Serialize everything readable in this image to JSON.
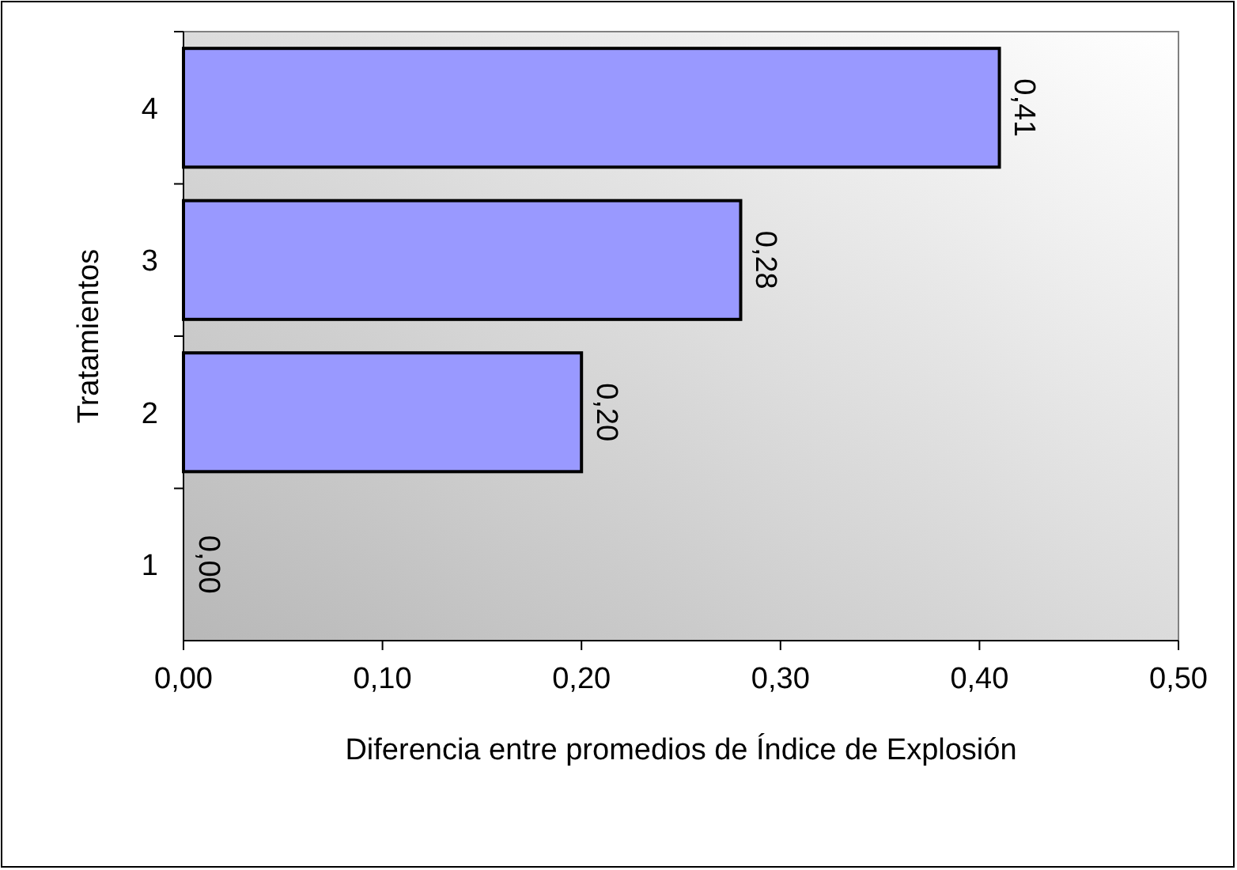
{
  "chart_data": {
    "type": "bar",
    "orientation": "horizontal",
    "xlabel": "Diferencia entre promedios de Índice de  Explosión",
    "ylabel": "Tratamientos",
    "categories": [
      "4",
      "3",
      "2",
      "1"
    ],
    "values": [
      0.41,
      0.28,
      0.2,
      0.0
    ],
    "value_labels": [
      "0,41",
      "0,28",
      "0,20",
      "0,00"
    ],
    "color": "#9999ff",
    "xlim": [
      0,
      0.5
    ],
    "xticks": [
      {
        "value": 0,
        "label": "0,00"
      },
      {
        "value": 0.1,
        "label": "0,10"
      },
      {
        "value": 0.2,
        "label": "0,20"
      },
      {
        "value": 0.3,
        "label": "0,30"
      },
      {
        "value": 0.4,
        "label": "0,40"
      },
      {
        "value": 0.5,
        "label": "0,50"
      }
    ],
    "grid": false
  }
}
